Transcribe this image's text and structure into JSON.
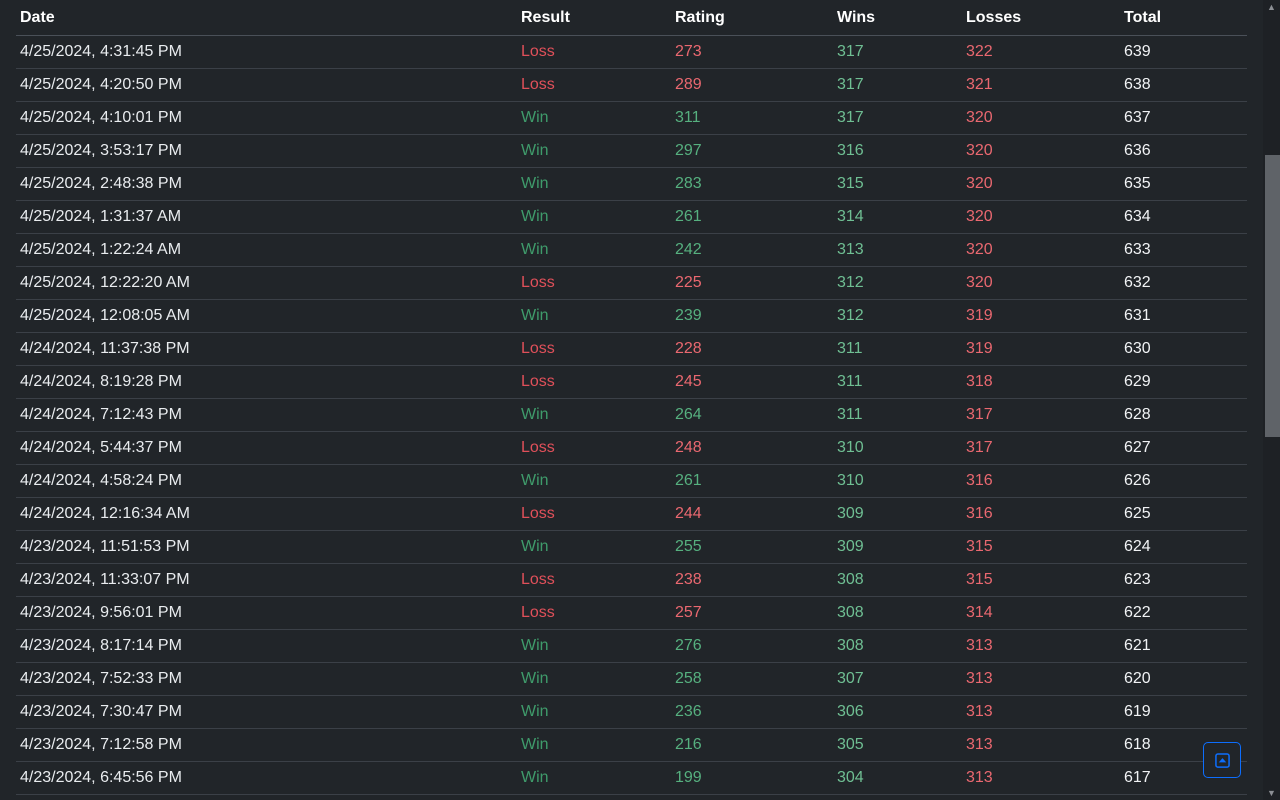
{
  "table": {
    "headers": [
      "Date",
      "Result",
      "Rating",
      "Wins",
      "Losses",
      "Total"
    ],
    "rows": [
      [
        "4/25/2024, 4:31:45 PM",
        "Loss",
        "273",
        "317",
        "322",
        "639"
      ],
      [
        "4/25/2024, 4:20:50 PM",
        "Loss",
        "289",
        "317",
        "321",
        "638"
      ],
      [
        "4/25/2024, 4:10:01 PM",
        "Win",
        "311",
        "317",
        "320",
        "637"
      ],
      [
        "4/25/2024, 3:53:17 PM",
        "Win",
        "297",
        "316",
        "320",
        "636"
      ],
      [
        "4/25/2024, 2:48:38 PM",
        "Win",
        "283",
        "315",
        "320",
        "635"
      ],
      [
        "4/25/2024, 1:31:37 AM",
        "Win",
        "261",
        "314",
        "320",
        "634"
      ],
      [
        "4/25/2024, 1:22:24 AM",
        "Win",
        "242",
        "313",
        "320",
        "633"
      ],
      [
        "4/25/2024, 12:22:20 AM",
        "Loss",
        "225",
        "312",
        "320",
        "632"
      ],
      [
        "4/25/2024, 12:08:05 AM",
        "Win",
        "239",
        "312",
        "319",
        "631"
      ],
      [
        "4/24/2024, 11:37:38 PM",
        "Loss",
        "228",
        "311",
        "319",
        "630"
      ],
      [
        "4/24/2024, 8:19:28 PM",
        "Loss",
        "245",
        "311",
        "318",
        "629"
      ],
      [
        "4/24/2024, 7:12:43 PM",
        "Win",
        "264",
        "311",
        "317",
        "628"
      ],
      [
        "4/24/2024, 5:44:37 PM",
        "Loss",
        "248",
        "310",
        "317",
        "627"
      ],
      [
        "4/24/2024, 4:58:24 PM",
        "Win",
        "261",
        "310",
        "316",
        "626"
      ],
      [
        "4/24/2024, 12:16:34 AM",
        "Loss",
        "244",
        "309",
        "316",
        "625"
      ],
      [
        "4/23/2024, 11:51:53 PM",
        "Win",
        "255",
        "309",
        "315",
        "624"
      ],
      [
        "4/23/2024, 11:33:07 PM",
        "Loss",
        "238",
        "308",
        "315",
        "623"
      ],
      [
        "4/23/2024, 9:56:01 PM",
        "Loss",
        "257",
        "308",
        "314",
        "622"
      ],
      [
        "4/23/2024, 8:17:14 PM",
        "Win",
        "276",
        "308",
        "313",
        "621"
      ],
      [
        "4/23/2024, 7:52:33 PM",
        "Win",
        "258",
        "307",
        "313",
        "620"
      ],
      [
        "4/23/2024, 7:30:47 PM",
        "Win",
        "236",
        "306",
        "313",
        "619"
      ],
      [
        "4/23/2024, 7:12:58 PM",
        "Win",
        "216",
        "305",
        "313",
        "618"
      ],
      [
        "4/23/2024, 6:45:56 PM",
        "Win",
        "199",
        "304",
        "313",
        "617"
      ]
    ]
  },
  "back_to_top": {
    "icon": "arrow-up-box-icon"
  },
  "colors": {
    "background": "#212529",
    "win": "#3f9b6b",
    "loss": "#e0505a",
    "accent": "#0d6efd"
  }
}
